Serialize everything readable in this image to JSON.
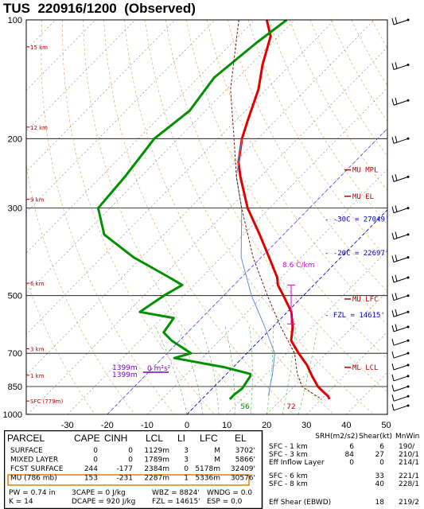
{
  "header": {
    "station": "TUS",
    "datetime": "220916/1200",
    "note": "(Observed)"
  },
  "chart_data": {
    "type": "line",
    "title": "TUS  220916/1200  (Observed)",
    "pressure_axis": {
      "ticks": [
        "100",
        "200",
        "300",
        "500",
        "700",
        "850",
        "1000"
      ],
      "range_mb": [
        1000,
        100
      ],
      "scale": "log"
    },
    "temperature_axis": {
      "ticks": [
        "-30",
        "-20",
        "-10",
        "0",
        "10",
        "20",
        "30",
        "40",
        "50"
      ],
      "range_c": [
        -35,
        50
      ]
    },
    "height_labels": [
      {
        "p": 117,
        "label": "15 km"
      },
      {
        "p": 187,
        "label": "12 km"
      },
      {
        "p": 285,
        "label": "9 km"
      },
      {
        "p": 465,
        "label": "6 km"
      },
      {
        "p": 682,
        "label": "3 km"
      },
      {
        "p": 796,
        "label": "1 km"
      },
      {
        "p": 925,
        "label": "SFC (779m)"
      }
    ],
    "series": [
      {
        "color": "#e00000",
        "points": [
          [
            100,
            -77
          ],
          [
            110,
            -72
          ],
          [
            130,
            -67
          ],
          [
            150,
            -62
          ],
          [
            180,
            -57
          ],
          [
            200,
            -54
          ],
          [
            230,
            -49
          ],
          [
            250,
            -45
          ],
          [
            300,
            -35.5
          ],
          [
            350,
            -26
          ],
          [
            400,
            -18
          ],
          [
            450,
            -11
          ],
          [
            470,
            -9
          ],
          [
            500,
            -5
          ],
          [
            550,
            1
          ],
          [
            600,
            5
          ],
          [
            650,
            8
          ],
          [
            700,
            13
          ],
          [
            750,
            18
          ],
          [
            800,
            22
          ],
          [
            850,
            26
          ],
          [
            880,
            29
          ],
          [
            900,
            31
          ],
          [
            915,
            32
          ]
        ]
      },
      {
        "color": "#009000",
        "points": [
          [
            100,
            -72
          ],
          [
            115,
            -74
          ],
          [
            140,
            -76
          ],
          [
            170,
            -74
          ],
          [
            200,
            -76
          ],
          [
            250,
            -74
          ],
          [
            300,
            -73
          ],
          [
            350,
            -65
          ],
          [
            400,
            -52
          ],
          [
            450,
            -38
          ],
          [
            470,
            -33
          ],
          [
            500,
            -35
          ],
          [
            550,
            -37
          ],
          [
            570,
            -27
          ],
          [
            620,
            -26
          ],
          [
            650,
            -22
          ],
          [
            700,
            -14
          ],
          [
            720,
            -17
          ],
          [
            760,
            -2
          ],
          [
            790,
            6
          ],
          [
            800,
            6.5
          ],
          [
            860,
            7.5
          ],
          [
            890,
            7
          ],
          [
            915,
            7
          ]
        ]
      },
      {
        "color": "#6090e0",
        "points": [
          [
            200,
            -54
          ],
          [
            250,
            -46
          ],
          [
            300,
            -37
          ],
          [
            400,
            -25
          ],
          [
            500,
            -13
          ],
          [
            600,
            -2
          ],
          [
            700,
            7
          ],
          [
            800,
            12
          ],
          [
            850,
            14
          ],
          [
            900,
            16
          ]
        ]
      },
      {
        "color": "#702000",
        "points": [
          [
            100,
            -84
          ],
          [
            150,
            -69
          ],
          [
            200,
            -56
          ],
          [
            250,
            -46
          ],
          [
            300,
            -37
          ],
          [
            400,
            -22
          ],
          [
            500,
            -9
          ],
          [
            600,
            2
          ],
          [
            700,
            12
          ],
          [
            786,
            17.5
          ],
          [
            850,
            22
          ],
          [
            915,
            30
          ]
        ]
      }
    ],
    "annotations": [
      {
        "p": 240,
        "text": "MU  MPL",
        "color": "#c00000"
      },
      {
        "p": 280,
        "text": "MU  EL",
        "color": "#c00000"
      },
      {
        "p": 320,
        "text": "- -30C = 27049'",
        "color": "#0000c0"
      },
      {
        "p": 390,
        "text": "- -20C = 22697'",
        "color": "#0000c0"
      },
      {
        "p": 510,
        "text": "MU  LFC",
        "color": "#c00000"
      },
      {
        "p": 560,
        "text": "- FZL = 14615'",
        "color": "#0000c0"
      },
      {
        "p": 760,
        "text": "ML  LCL",
        "color": "#c00000"
      }
    ],
    "lapse_rate_label": "8.6 C/km",
    "bunkers_label": "0 m²s²",
    "height_markers": [
      "1399m",
      "1399m"
    ],
    "surface_td": "56",
    "surface_t": "72",
    "grid": true
  },
  "params": {
    "headers": {
      "parcel": "PARCEL",
      "cape": "CAPE",
      "cinh": "CINH",
      "lcl": "LCL",
      "li": "LI",
      "lfc": "LFC",
      "el": "EL"
    },
    "rows": [
      {
        "parcel": "SURFACE",
        "cape": "0",
        "cinh": "0",
        "lcl": "1129m",
        "li": "3",
        "lfc": "M",
        "el": "3702'"
      },
      {
        "parcel": "MIXED LAYER",
        "cape": "0",
        "cinh": "0",
        "lcl": "1789m",
        "li": "3",
        "lfc": "M",
        "el": "5866'"
      },
      {
        "parcel": "FCST SURFACE",
        "cape": "244",
        "cinh": "-177",
        "lcl": "2384m",
        "li": "0",
        "lfc": "5178m",
        "el": "32409'"
      },
      {
        "parcel": "MU   (786 mb)",
        "cape": "153",
        "cinh": "-231",
        "lcl": "2287m",
        "li": "1",
        "lfc": "5336m",
        "el": "30576'"
      }
    ],
    "extra": [
      [
        "PW = 0.74 in",
        "3CAPE = 0 J/kg",
        "WBZ = 8824'",
        "WNDG = 0.0"
      ],
      [
        "K = 14",
        "DCAPE = 920 J/kg",
        "FZL = 14615'",
        "ESP = 0.0"
      ]
    ],
    "shear_headers": {
      "srh": "SRH(m2/s2)",
      "shear": "Shear(kt)",
      "mnwind": "MnWin"
    },
    "shear_rows": [
      {
        "label": "SFC - 1 km",
        "srh": "6",
        "shear": "6",
        "mnwind": "190/"
      },
      {
        "label": "SFC - 3 km",
        "srh": "84",
        "shear": "27",
        "mnwind": "210/1"
      },
      {
        "label": "Eff Inflow Layer",
        "srh": "0",
        "shear": "0",
        "mnwind": "214/1"
      },
      {
        "label": "SFC - 6 km",
        "srh": "",
        "shear": "33",
        "mnwind": "221/1"
      },
      {
        "label": "SFC - 8 km",
        "srh": "",
        "shear": "40",
        "mnwind": "228/1"
      },
      {
        "label": "Eff Shear (EBWD)",
        "srh": "",
        "shear": "18",
        "mnwind": "219/2"
      }
    ]
  }
}
